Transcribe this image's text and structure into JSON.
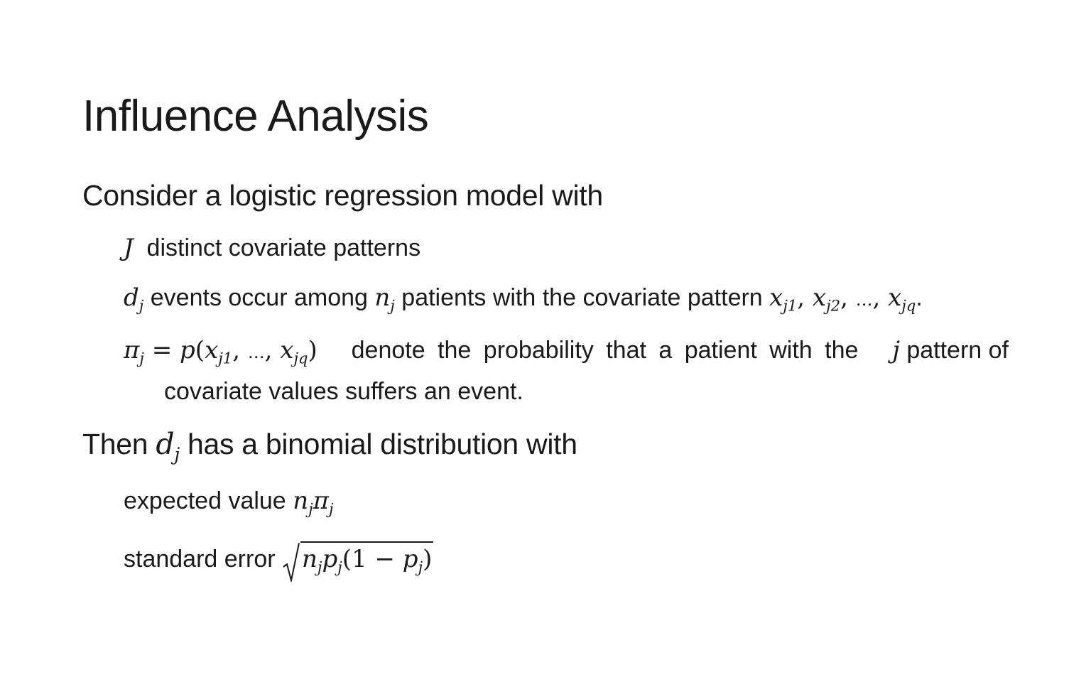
{
  "slide": {
    "title": "Influence Analysis",
    "intro": "Consider a logistic regression model with",
    "b1_var": "J",
    "b1_text": "distinct covariate patterns",
    "b2_d": "d",
    "b2_j": "j",
    "b2_text1": "events occur among",
    "b2_n": "n",
    "b2_text2": "patients with the covariate pattern",
    "b2_x": "x",
    "b2_s1": "j1",
    "b2_s2": "j2",
    "b2_s3": "jq",
    "b2_sep": ",",
    "b2_ellipsis": "…",
    "b2_end": ".",
    "b3_pi": "π",
    "b3_eq": "=",
    "b3_p": "p",
    "b3_lp": "(",
    "b3_rp": ")",
    "b3_text": "denote the probability that a patient with the",
    "b3_jvar": "j",
    "b3_text2": "pattern of",
    "b3_cont": "covariate values suffers an event.",
    "then_text1": "Then",
    "then_text2": "has a binomial distribution with",
    "ev_label": "expected value",
    "se_label": "standard error",
    "se_one": "1",
    "se_minus": "−"
  }
}
